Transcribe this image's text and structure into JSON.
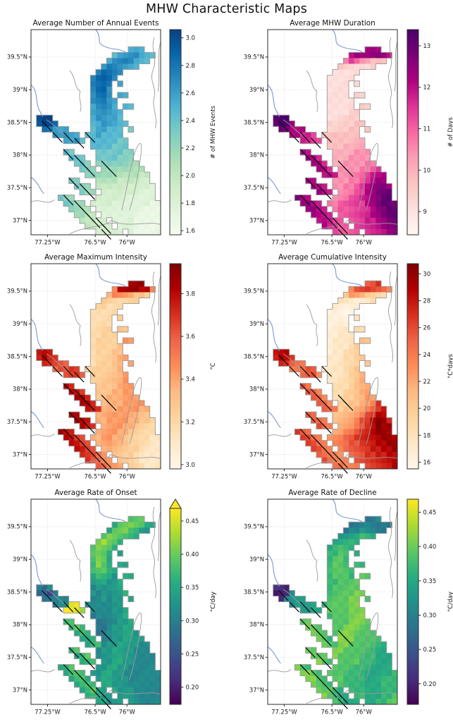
{
  "figure": {
    "title": "MHW Characteristic Maps",
    "background": "#ffffff"
  },
  "axes": {
    "lat_range": [
      36.78,
      39.92
    ],
    "lon_range": [
      -77.51,
      -75.47
    ],
    "lat_tick_values": [
      39.5,
      39.0,
      38.5,
      38.0,
      37.5,
      37.0
    ],
    "lat_tick_labels": [
      "39.5°N",
      "39°N",
      "38.5°N",
      "38°N",
      "37.5°N",
      "37°N"
    ],
    "lon_tick_values": [
      -77.25,
      -76.5,
      -76.0
    ],
    "lon_tick_labels": [
      "77.25°W",
      "76.5°W",
      "76°W"
    ]
  },
  "colors": {
    "spine": "#2b2b2b",
    "grid": "#c9c9c9",
    "coast": "#9b9b9b",
    "river": "#7a97cf",
    "hatch": "#111111",
    "text": "#1a1a1a"
  },
  "colormaps": {
    "GnBu": [
      "#f7fcf0",
      "#e0f3db",
      "#ccebc5",
      "#a8ddb5",
      "#7bccc4",
      "#4eb3d3",
      "#2b8cbe",
      "#0868ac",
      "#084081"
    ],
    "RdPu": [
      "#fff7f3",
      "#fde0dd",
      "#fcc5c0",
      "#fa9fb5",
      "#f768a1",
      "#dd3497",
      "#ae017e",
      "#7a0177",
      "#49006a"
    ],
    "OrRd": [
      "#fff7ec",
      "#fee8c8",
      "#fdd49e",
      "#fdbb84",
      "#fc8d59",
      "#ef6548",
      "#d7301f",
      "#b30000",
      "#7f0000"
    ],
    "viridis": [
      "#440154",
      "#472d7b",
      "#3b528b",
      "#2c728e",
      "#21918c",
      "#28ae80",
      "#5ec962",
      "#addc30",
      "#fde725"
    ]
  },
  "grid_encoding": "Each panel grid row string: '.' = no data cell; hex digit d = cell value vmin + (d/15)*(vmax-vmin)",
  "hatch_cells": [
    [
      16,
      2
    ],
    [
      18,
      4
    ],
    [
      18,
      6
    ],
    [
      18,
      10
    ],
    [
      19,
      8
    ],
    [
      21,
      6
    ],
    [
      22,
      8
    ],
    [
      23,
      9
    ],
    [
      23,
      13
    ],
    [
      24,
      10
    ],
    [
      24,
      14
    ],
    [
      26,
      7
    ],
    [
      27,
      9
    ],
    [
      28,
      10
    ],
    [
      29,
      6
    ],
    [
      30,
      8
    ],
    [
      31,
      9
    ],
    [
      32,
      10
    ],
    [
      33,
      11
    ],
    [
      33,
      12
    ],
    [
      34,
      13
    ],
    [
      35,
      13
    ]
  ],
  "chart_data": [
    {
      "id": "annual-events",
      "type": "heatmap",
      "title": "Average Number of Annual Events",
      "colormap": "GnBu",
      "cbar_label": "# of MHW Events",
      "vmin": 1.57,
      "vmax": 3.06,
      "extend_max": false,
      "cbar_ticks": [
        1.6,
        1.8,
        2.0,
        2.2,
        2.4,
        2.6,
        2.8,
        3.0
      ],
      "cbar_tick_labels": [
        "1.6",
        "1.8",
        "2.0",
        "2.2",
        "2.4",
        "2.6",
        "2.8",
        "3.0"
      ],
      "grid": [
        "........................",
        "........................",
        "........................",
        "..................aa9...",
        "...............9abbba99.",
        "..............abccba99..",
        ".............bccbaa9....",
        "............cddcb.......",
        "...........cdedb........",
        "...........cddc.a.......",
        "...........cddb.........",
        "...........bcdb.aa......",
        "...........bccba........",
        "...........abcba.99.....",
        "...........abbba9.......",
        ".eff.......abbaa9.......",
        ".effd......9abaa99......",
        "..dcbaa....9aa999.8.....",
        "....babaa.99a9999.......",
        "......aab9.9999988......",
        "...........9999888......",
        "......98....8888877.....",
        ".......988..8888777.....",
        "........887.77777766....",
        ".........877.66666655...",
        "..........776666555544..",
        ".......87...5555444433..",
        "........876.44444333332.",
        ".........766.3333333222.",
        ".....876....33333222222.",
        "......8766.3333222222211",
        ".......7665.222222221111",
        "........6654.22222211111",
        ".........54433.222211111",
        "..........44333.22211111",
        "............33332.211111"
      ]
    },
    {
      "id": "mhw-duration",
      "type": "heatmap",
      "title": "Average MHW Duration",
      "colormap": "RdPu",
      "cbar_label": "# of Days",
      "vmin": 8.44,
      "vmax": 13.39,
      "extend_max": false,
      "cbar_ticks": [
        9,
        10,
        11,
        12,
        13
      ],
      "cbar_tick_labels": [
        "9",
        "10",
        "11",
        "12",
        "13"
      ],
      "grid": [
        "........................",
        "........................",
        "........................",
        "..................ccb...",
        "...............bccccdcb.",
        "..............79865444..",
        ".............4332223....",
        "............22222.......",
        "...........22222........",
        "...........2222.2.......",
        "...........2222.........",
        "...........2222.33......",
        "...........22222........",
        "...........22223.33.....",
        "...........222233.......",
        ".eff.......223333.......",
        ".effc......3333344......",
        "..edcbb....333344.4.....",
        "....bbaa9.4444444.......",
        "......aa99.4444455......",
        "...........4445555......",
        "......cb....5555666.....",
        ".......cba..5556666.....",
        "........cba.55666677....",
        ".........cba.66667789...",
        "..........bba667789abb..",
        ".......cb...6667789bcc..",
        "........cba.667789bcddc.",
        ".........cba.67789bcdee.",
        ".....dcb....67789abcdee.",
        "......ccba.7788999bcdeed",
        ".......ccba.788899abcdee",
        "........cbba.8899aabcdee",
        ".........bba98.899aabcde",
        "..........ba988.99aabcdd",
        "............98888.9aabcc"
      ]
    },
    {
      "id": "max-intensity",
      "type": "heatmap",
      "title": "Average Maximum Intensity",
      "colormap": "OrRd",
      "cbar_label": "°C",
      "vmin": 2.98,
      "vmax": 3.94,
      "extend_max": false,
      "cbar_ticks": [
        3.0,
        3.2,
        3.4,
        3.6,
        3.8
      ],
      "cbar_tick_labels": [
        "3.0",
        "3.2",
        "3.4",
        "3.6",
        "3.8"
      ],
      "grid": [
        "........................",
        "........................",
        "........................",
        "..................eee...",
        "...............8deeedd8.",
        "..............68876554..",
        ".............5443344....",
        "............44333.......",
        "...........33333........",
        "...........3333.4.......",
        "...........3333.........",
        "...........3344.55......",
        "...........33444........",
        "...........34444.77.....",
        "...........344445.......",
        ".cdc.......344455.......",
        ".cdcb......3444567......",
        "..cbba9....344456.7.....",
        "....9aabb.4444456.......",
        "......abba.4445567......",
        "...........4455667......",
        "......dc....5555677.....",
        ".......dcb..5556677.....",
        "........edc.55666777....",
        ".........edc.56667777...",
        "..........dcb666777766..",
        ".......ed...6677776655..",
        "........edc.66777766554.",
        ".........dcb.6777665443.",
        ".....edc....67776654433.",
        "......dcba.6677665443322",
        ".......dcba.667665443322",
        "........dcba.66655443222",
        ".........cba97.554432222",
        "..........ba987.54432222",
        "............a9876.443222"
      ]
    },
    {
      "id": "cumulative-intensity",
      "type": "heatmap",
      "title": "Average Cumulative Intensity",
      "colormap": "OrRd",
      "cbar_label": "°C*days",
      "vmin": 15.5,
      "vmax": 30.75,
      "extend_max": false,
      "cbar_ticks": [
        16,
        18,
        20,
        22,
        24,
        26,
        28,
        30
      ],
      "cbar_tick_labels": [
        "16",
        "18",
        "20",
        "22",
        "24",
        "26",
        "28",
        "30"
      ],
      "grid": [
        "........................",
        "........................",
        "........................",
        "..................aab...",
        "...............8abbaa98.",
        "..............57764433..",
        ".............3221123....",
        "............21111.......",
        "...........11100........",
        "...........1110.2.......",
        "...........1111.........",
        "...........1122.33......",
        "...........11222........",
        "...........12223.55.....",
        "...........122234.......",
        ".cdd.......122334.......",
        ".cddb......2223345......",
        "..cba98....222334.5.....",
        "....889aa.2222345.......",
        "......9aa8.2223456......",
        "...........2233456......",
        "......a9....3334566.....",
        ".......a98..3344567.....",
        "........a98.33445677....",
        ".........a98.4455678b...",
        "..........a984556789bc..",
        ".......a9...556678abdd..",
        "........a98.56678abdfec.",
        ".........a98.6778abdfee.",
        ".....ba9....6788abcdfed.",
        "......ba98.7889abccddeed",
        ".......ba98.889aabccddee",
        "........ba98.89aabbccdde",
        ".........a9887.9aabbccdd",
        "..........a9888.aabbccdd",
        "............99888.abbccd"
      ]
    },
    {
      "id": "rate-of-onset",
      "type": "heatmap",
      "title": "Average Rate of Onset",
      "colormap": "viridis",
      "cbar_label": "°C/day",
      "vmin": 0.174,
      "vmax": 0.469,
      "extend_max": true,
      "cbar_ticks": [
        0.2,
        0.25,
        0.3,
        0.35,
        0.4,
        0.45
      ],
      "cbar_tick_labels": [
        "0.20",
        "0.25",
        "0.30",
        "0.35",
        "0.40",
        "0.45"
      ],
      "grid": [
        "........................",
        "........................",
        "........................",
        "..................bbb...",
        "...............9bccbb99.",
        "..............9bccaa88..",
        ".............bccbaa9....",
        "............cdcb9.......",
        "...........bccb9........",
        "...........bcb9.8.......",
        "...........bcb9.........",
        "...........acb9.99......",
        "...........abba9........",
        "...........9aa98.99.....",
        "...........899889.......",
        ".657.......788889.......",
        ".5536......878788a......",
        "..66776....778788.9.....",
        "....677ef.8777788.......",
        "......ffed.7777889......",
        "...........6777889......",
        "......ab....6677889.....",
        ".......aba..6678899.....",
        "........9aa.66788998....",
        ".........99a.67889988...",
        "..........9aa788998877..",
        ".......ab...7889988777..",
        "........9ab.78899887777.",
        ".........9aa.8899887777.",
        ".....9ab....88998877777.",
        "......9aba.8899887777777",
        ".......9ab9.899888777777",
        "........9aba.99888777777",
        ".........9ab98.988877777",
        "..........9a988.88877777",
        "............99888.887777"
      ]
    },
    {
      "id": "rate-of-decline",
      "type": "heatmap",
      "title": "Average Rate of Decline",
      "colormap": "viridis",
      "cbar_label": "°C/day",
      "vmin": 0.17,
      "vmax": 0.469,
      "extend_max": false,
      "cbar_ticks": [
        0.2,
        0.25,
        0.3,
        0.35,
        0.4,
        0.45
      ],
      "cbar_tick_labels": [
        "0.20",
        "0.25",
        "0.30",
        "0.35",
        "0.40",
        "0.45"
      ],
      "grid": [
        "........................",
        "........................",
        "........................",
        "..................667...",
        "...............66776666.",
        "..............67787766..",
        ".............8899aa9....",
        "............99aa9.......",
        "...........9aba9........",
        "...........aaba.9.......",
        "...........abba.........",
        "...........abba.aa......",
        "...........abbba........",
        "...........abbba.bb.....",
        "...........aabbbb.......",
        ".221.......abbbbb.......",
        ".1127......abbbbcc......",
        "..27888....bbbbcc.b.....",
        "....78889.abbbbcc.......",
        "......8899.bbbbccc......",
        "...........abbbccc......",
        "......bc....bbbcccb.....",
        ".......cbb..bbcccbb.....",
        "........cbb.bcccbbbb....",
        ".........cba.cccbbbba...",
        "..........cbaccbbbbaa9..",
        ".......cb...ccbbbbaa99..",
        "........cbb.cbbbbaaa999.",
        ".........cba.bbbbaaa999.",
        ".....cba....bbbaaaa9999.",
        "......ccba.bbbaaaa99999a",
        ".......ccba.bbaaaa999aaa",
        "........cbba.baaaa999aaa",
        ".........cbba9.aaa999aaa",
        "..........cba99.aa999aab",
        "............ba999.99aabb"
      ]
    }
  ]
}
